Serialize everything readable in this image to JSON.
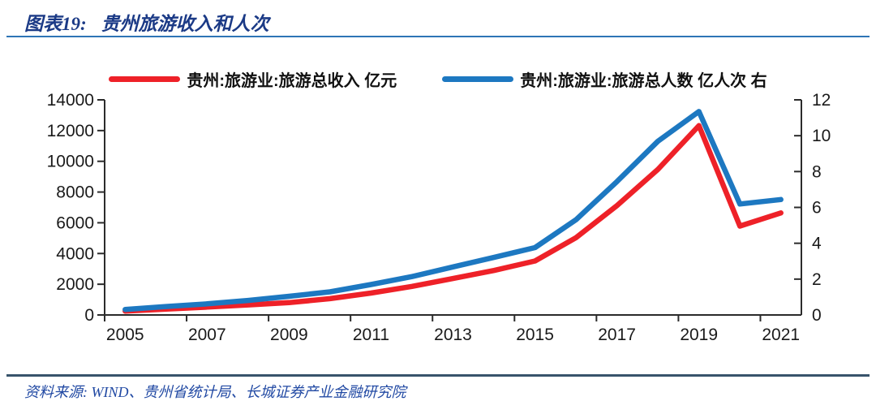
{
  "header": {
    "figure_label": "图表19:",
    "title": "贵州旅游收入和人次"
  },
  "footer": {
    "source": "资料来源: WIND、贵州省统计局、长城证券产业金融研究院"
  },
  "colors": {
    "title_navy": "#1b3a86",
    "header_rule_blue": "#2e75b6",
    "footer_rule": "#37536b",
    "source_blue": "#2149a3",
    "axis_text": "#1a1a1a",
    "axis_line": "#2b2b2b",
    "revenue_red": "#ee2128",
    "visitors_blue": "#1d78c1"
  },
  "chart_data": {
    "type": "line",
    "title": "贵州旅游收入和人次",
    "x": [
      2005,
      2006,
      2007,
      2008,
      2009,
      2010,
      2011,
      2012,
      2013,
      2014,
      2015,
      2016,
      2017,
      2018,
      2019,
      2020,
      2021
    ],
    "x_tick_labels": [
      "2005",
      "2007",
      "2009",
      "2011",
      "2013",
      "2015",
      "2017",
      "2019",
      "2021"
    ],
    "series": [
      {
        "name": "贵州:旅游业:旅游总收入 亿元",
        "axis": "left",
        "color": "#ee2128",
        "values": [
          251,
          387,
          512,
          653,
          805,
          1061,
          1429,
          1860,
          2370,
          2895,
          3512,
          5028,
          7116,
          9471,
          12318,
          5786,
          6642
        ]
      },
      {
        "name": "贵州:旅游业:旅游总人数 亿人次 右",
        "axis": "right",
        "color": "#1d78c1",
        "values": [
          0.31,
          0.47,
          0.62,
          0.81,
          1.04,
          1.29,
          1.7,
          2.14,
          2.68,
          3.21,
          3.76,
          5.31,
          7.44,
          9.69,
          11.35,
          6.19,
          6.44
        ]
      }
    ],
    "left_axis": {
      "min": 0,
      "max": 14000,
      "step": 2000
    },
    "right_axis": {
      "min": 0,
      "max": 12,
      "step": 2
    },
    "grid": false,
    "legend_position": "top"
  }
}
